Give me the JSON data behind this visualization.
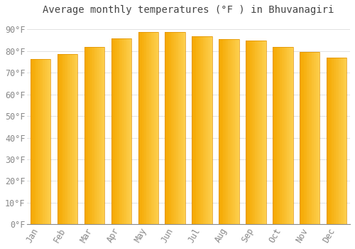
{
  "title": "Average monthly temperatures (°F ) in Bhuvanagiri",
  "months": [
    "Jan",
    "Feb",
    "Mar",
    "Apr",
    "May",
    "Jun",
    "Jul",
    "Aug",
    "Sep",
    "Oct",
    "Nov",
    "Dec"
  ],
  "values": [
    76.5,
    78.5,
    82,
    86,
    89,
    89,
    87,
    85.5,
    85,
    82,
    79.5,
    77
  ],
  "bar_color_left": "#F5A800",
  "bar_color_right": "#FDD050",
  "bar_edge_color": "#E09000",
  "background_color": "#FFFFFF",
  "grid_color": "#DDDDDD",
  "text_color": "#888888",
  "title_color": "#444444",
  "ylim": [
    0,
    95
  ],
  "yticks": [
    0,
    10,
    20,
    30,
    40,
    50,
    60,
    70,
    80,
    90
  ],
  "title_fontsize": 10,
  "tick_fontsize": 8.5
}
